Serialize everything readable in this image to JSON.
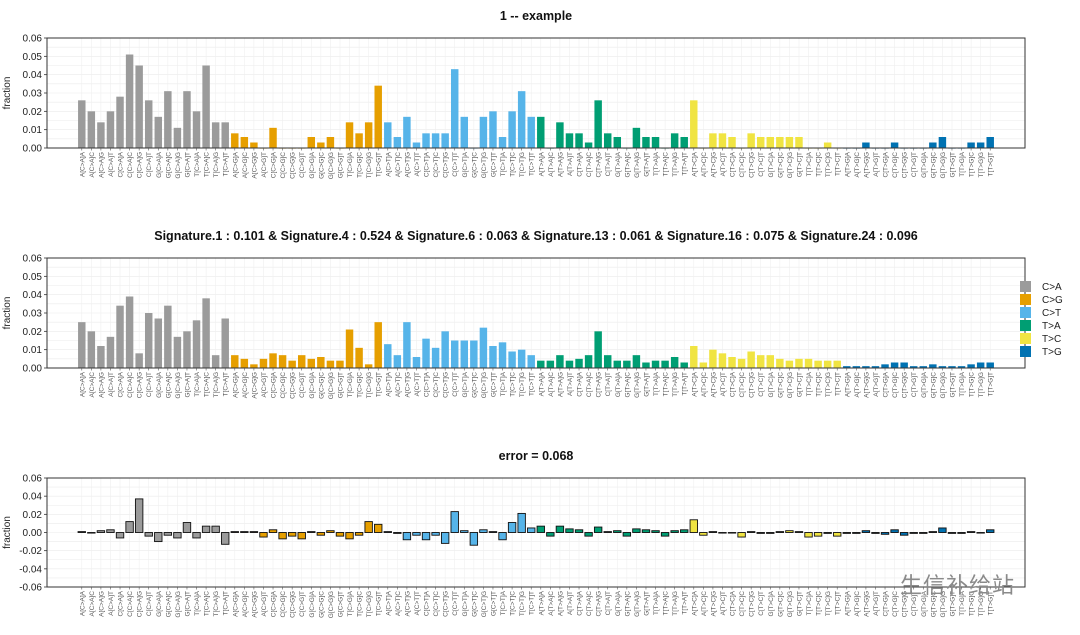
{
  "watermark": "生信补给站",
  "colors": {
    "C>A": "#9b9b9b",
    "C>G": "#e69f00",
    "C>T": "#56b4e9",
    "T>A": "#009e73",
    "T>C": "#f0e442",
    "T>G": "#0072b2"
  },
  "chart_data": [
    {
      "type": "bar",
      "title": "1 -- example",
      "ylabel": "fraction",
      "xlabel": "",
      "ylim": [
        0,
        0.06
      ],
      "yticks": [
        "0.00",
        "0.01",
        "0.02",
        "0.03",
        "0.04",
        "0.05",
        "0.06"
      ],
      "ytick_values": [
        0,
        0.01,
        0.02,
        0.03,
        0.04,
        0.05,
        0.06
      ],
      "grid": true,
      "legend": false,
      "categories": [
        "A[C>A]A",
        "A[C>A]C",
        "A[C>A]G",
        "A[C>A]T",
        "C[C>A]A",
        "C[C>A]C",
        "C[C>A]G",
        "C[C>A]T",
        "G[C>A]A",
        "G[C>A]C",
        "G[C>A]G",
        "G[C>A]T",
        "T[C>A]A",
        "T[C>A]C",
        "T[C>A]G",
        "T[C>A]T",
        "A[C>G]A",
        "A[C>G]C",
        "A[C>G]G",
        "A[C>G]T",
        "C[C>G]A",
        "C[C>G]C",
        "C[C>G]G",
        "C[C>G]T",
        "G[C>G]A",
        "G[C>G]C",
        "G[C>G]G",
        "G[C>G]T",
        "T[C>G]A",
        "T[C>G]C",
        "T[C>G]G",
        "T[C>G]T",
        "A[C>T]A",
        "A[C>T]C",
        "A[C>T]G",
        "A[C>T]T",
        "C[C>T]A",
        "C[C>T]C",
        "C[C>T]G",
        "C[C>T]T",
        "G[C>T]A",
        "G[C>T]C",
        "G[C>T]G",
        "G[C>T]T",
        "T[C>T]A",
        "T[C>T]C",
        "T[C>T]G",
        "T[C>T]T",
        "A[T>A]A",
        "A[T>A]C",
        "A[T>A]G",
        "A[T>A]T",
        "C[T>A]A",
        "C[T>A]C",
        "C[T>A]G",
        "C[T>A]T",
        "G[T>A]A",
        "G[T>A]C",
        "G[T>A]G",
        "G[T>A]T",
        "T[T>A]A",
        "T[T>A]C",
        "T[T>A]G",
        "T[T>A]T",
        "A[T>C]A",
        "A[T>C]C",
        "A[T>C]G",
        "A[T>C]T",
        "C[T>C]A",
        "C[T>C]C",
        "C[T>C]G",
        "C[T>C]T",
        "G[T>C]A",
        "G[T>C]C",
        "G[T>C]G",
        "G[T>C]T",
        "T[T>C]A",
        "T[T>C]C",
        "T[T>C]G",
        "T[T>C]T",
        "A[T>G]A",
        "A[T>G]C",
        "A[T>G]G",
        "A[T>G]T",
        "C[T>G]A",
        "C[T>G]C",
        "C[T>G]G",
        "C[T>G]T",
        "G[T>G]A",
        "G[T>G]C",
        "G[T>G]G",
        "G[T>G]T",
        "T[T>G]A",
        "T[T>G]C",
        "T[T>G]G",
        "T[T>G]T"
      ],
      "groups": [
        "C>A",
        "C>G",
        "C>T",
        "T>A",
        "T>C",
        "T>G"
      ],
      "values": [
        0.026,
        0.02,
        0.014,
        0.02,
        0.028,
        0.051,
        0.045,
        0.026,
        0.017,
        0.031,
        0.011,
        0.031,
        0.02,
        0.045,
        0.014,
        0.014,
        0.008,
        0.006,
        0.003,
        0.0,
        0.011,
        0.0,
        0.0,
        0.0,
        0.006,
        0.003,
        0.006,
        0.0,
        0.014,
        0.008,
        0.014,
        0.034,
        0.014,
        0.006,
        0.017,
        0.003,
        0.008,
        0.008,
        0.008,
        0.043,
        0.017,
        0.0,
        0.017,
        0.02,
        0.006,
        0.02,
        0.031,
        0.017,
        0.017,
        0.0,
        0.014,
        0.008,
        0.008,
        0.003,
        0.026,
        0.008,
        0.006,
        0.0,
        0.011,
        0.006,
        0.006,
        0.0,
        0.008,
        0.006,
        0.026,
        0.0,
        0.008,
        0.008,
        0.006,
        0.0,
        0.008,
        0.006,
        0.006,
        0.006,
        0.006,
        0.006,
        0.0,
        0.0,
        0.003,
        0.0,
        0.0,
        0.0,
        0.003,
        0.0,
        0.0,
        0.003,
        0.0,
        0.0,
        0.0,
        0.003,
        0.006,
        0.0,
        0.0,
        0.003,
        0.003,
        0.006
      ]
    },
    {
      "type": "bar",
      "title": "Signature.1 : 0.101 & Signature.4 : 0.524 & Signature.6 : 0.063 & Signature.13 : 0.061 & Signature.16 : 0.075 & Signature.24 : 0.096",
      "ylabel": "fraction",
      "xlabel": "",
      "ylim": [
        0,
        0.06
      ],
      "yticks": [
        "0.00",
        "0.01",
        "0.02",
        "0.03",
        "0.04",
        "0.05",
        "0.06"
      ],
      "ytick_values": [
        0,
        0.01,
        0.02,
        0.03,
        0.04,
        0.05,
        0.06
      ],
      "grid": true,
      "legend": true,
      "legend_position": "right",
      "legend_items": [
        "C>A",
        "C>G",
        "C>T",
        "T>A",
        "T>C",
        "T>G"
      ],
      "categories": "same as chart 1",
      "values": [
        0.025,
        0.02,
        0.012,
        0.017,
        0.034,
        0.039,
        0.008,
        0.03,
        0.027,
        0.034,
        0.017,
        0.02,
        0.026,
        0.038,
        0.007,
        0.027,
        0.007,
        0.005,
        0.002,
        0.005,
        0.008,
        0.007,
        0.004,
        0.007,
        0.005,
        0.006,
        0.004,
        0.004,
        0.021,
        0.011,
        0.002,
        0.025,
        0.013,
        0.007,
        0.025,
        0.006,
        0.016,
        0.011,
        0.02,
        0.015,
        0.015,
        0.015,
        0.022,
        0.012,
        0.014,
        0.009,
        0.01,
        0.007,
        0.004,
        0.004,
        0.007,
        0.004,
        0.005,
        0.007,
        0.02,
        0.007,
        0.004,
        0.004,
        0.007,
        0.003,
        0.004,
        0.004,
        0.006,
        0.003,
        0.012,
        0.003,
        0.01,
        0.008,
        0.006,
        0.005,
        0.009,
        0.007,
        0.007,
        0.005,
        0.004,
        0.005,
        0.005,
        0.004,
        0.004,
        0.004,
        0.001,
        0.001,
        0.001,
        0.001,
        0.002,
        0.003,
        0.003,
        0.001,
        0.001,
        0.002,
        0.001,
        0.001,
        0.001,
        0.002,
        0.003,
        0.003
      ]
    },
    {
      "type": "bar",
      "title": "error = 0.068",
      "ylabel": "fraction",
      "xlabel": "",
      "ylim": [
        -0.06,
        0.06
      ],
      "yticks": [
        "-0.06",
        "-0.04",
        "-0.02",
        "0.00",
        "0.02",
        "0.04",
        "0.06"
      ],
      "ytick_values": [
        -0.06,
        -0.04,
        -0.02,
        0,
        0.02,
        0.04,
        0.06
      ],
      "grid": true,
      "legend": false,
      "categories": "same as chart 1",
      "values": [
        0.001,
        0.0,
        0.002,
        0.003,
        -0.006,
        0.012,
        0.037,
        -0.004,
        -0.01,
        -0.003,
        -0.006,
        0.011,
        -0.006,
        0.007,
        0.007,
        -0.013,
        0.001,
        0.001,
        0.001,
        -0.005,
        0.003,
        -0.007,
        -0.004,
        -0.007,
        0.001,
        -0.003,
        0.002,
        -0.004,
        -0.007,
        -0.003,
        0.012,
        0.009,
        0.001,
        -0.001,
        -0.008,
        -0.003,
        -0.008,
        -0.003,
        -0.012,
        0.023,
        0.002,
        -0.014,
        0.003,
        0.001,
        -0.008,
        0.011,
        0.021,
        0.005,
        0.007,
        -0.004,
        0.007,
        0.004,
        0.003,
        -0.004,
        0.006,
        0.001,
        0.002,
        -0.004,
        0.004,
        0.003,
        0.002,
        -0.004,
        0.002,
        0.003,
        0.014,
        -0.003,
        0.001,
        0.0,
        0.0,
        -0.005,
        0.001,
        -0.001,
        -0.001,
        0.001,
        0.002,
        0.001,
        -0.005,
        -0.004,
        -0.001,
        -0.004,
        -0.001,
        -0.001,
        0.002,
        -0.001,
        -0.002,
        0.003,
        -0.003,
        -0.001,
        -0.001,
        0.001,
        0.005,
        -0.001,
        -0.001,
        0.001,
        0.0,
        0.003
      ]
    }
  ]
}
